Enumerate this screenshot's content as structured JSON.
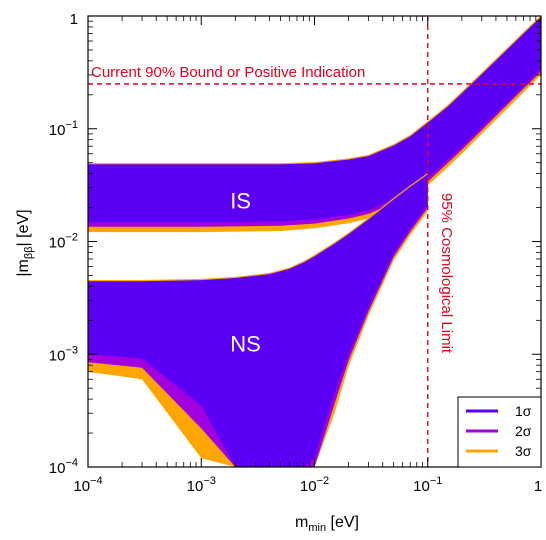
{
  "chart_data": {
    "type": "area",
    "title": "",
    "x_scale": "log",
    "y_scale": "log",
    "xlim": [
      0.0001,
      1
    ],
    "ylim": [
      0.0001,
      1
    ],
    "grid": false,
    "xlabel": {
      "main": "m",
      "sub": "min",
      "unit": "[eV]"
    },
    "ylabel": {
      "main": "|m",
      "sub": "ββ",
      "tail": "|",
      "unit": "[eV]"
    },
    "x_ticks": [
      {
        "value": 0.0001,
        "base": "10",
        "exp": "−4"
      },
      {
        "value": 0.001,
        "base": "10",
        "exp": "−3"
      },
      {
        "value": 0.01,
        "base": "10",
        "exp": "−2"
      },
      {
        "value": 0.1,
        "base": "10",
        "exp": "−1"
      },
      {
        "value": 1,
        "base": "1",
        "exp": ""
      }
    ],
    "y_ticks": [
      {
        "value": 0.0001,
        "base": "10",
        "exp": "−4"
      },
      {
        "value": 0.001,
        "base": "10",
        "exp": "−3"
      },
      {
        "value": 0.01,
        "base": "10",
        "exp": "−2"
      },
      {
        "value": 0.1,
        "base": "10",
        "exp": "−1"
      },
      {
        "value": 1,
        "base": "1",
        "exp": ""
      }
    ],
    "legend": {
      "position": "bottom-right",
      "entries": [
        {
          "label": "1σ",
          "color": "#5b00f5"
        },
        {
          "label": "2σ",
          "color": "#a100e0"
        },
        {
          "label": "3σ",
          "color": "#ffa500"
        }
      ]
    },
    "colors": {
      "band_1s": "#5b00f5",
      "band_2s": "#a100e0",
      "band_3s": "#ffa500",
      "limits": "#e8001c"
    },
    "bound_line": {
      "y": 0.25,
      "label": "Current 90% Bound or Positive Indication"
    },
    "cosmo_line": {
      "x": 0.1,
      "label": "95% Cosmological Limit"
    },
    "region_labels": [
      {
        "text": "IS",
        "x": 0.0015,
        "y": 0.024
      },
      {
        "text": "NS",
        "x": 0.0015,
        "y": 0.0013
      }
    ],
    "series": [
      {
        "name": "IS",
        "x": [
          0.0001,
          0.001,
          0.005,
          0.01,
          0.02,
          0.03,
          0.05,
          0.07,
          0.1,
          0.15,
          0.2,
          0.3,
          0.5,
          0.7,
          1
        ],
        "upper_1s": [
          0.049,
          0.049,
          0.049,
          0.05,
          0.054,
          0.058,
          0.072,
          0.087,
          0.115,
          0.16,
          0.21,
          0.31,
          0.51,
          0.71,
          1.0
        ],
        "lower_1s": [
          0.0148,
          0.0148,
          0.0151,
          0.0158,
          0.0172,
          0.019,
          0.0235,
          0.0285,
          0.037,
          0.053,
          0.069,
          0.103,
          0.17,
          0.238,
          0.34
        ],
        "lower_2s": [
          0.0135,
          0.0135,
          0.0138,
          0.0144,
          0.016,
          0.0176,
          0.0218,
          0.0265,
          0.034,
          0.0495,
          0.065,
          0.097,
          0.162,
          0.226,
          0.32
        ],
        "lower_3s": [
          0.0121,
          0.0121,
          0.0124,
          0.0131,
          0.0145,
          0.016,
          0.0198,
          0.024,
          0.0315,
          0.0455,
          0.06,
          0.09,
          0.15,
          0.21,
          0.3
        ]
      },
      {
        "name": "NS",
        "x": [
          0.0001,
          0.0003,
          0.001,
          0.002,
          0.004,
          0.006,
          0.008,
          0.01,
          0.015,
          0.02,
          0.03,
          0.05,
          0.07,
          0.1
        ],
        "upper_1s": [
          0.0045,
          0.0045,
          0.0046,
          0.0048,
          0.0052,
          0.0058,
          0.0066,
          0.0075,
          0.0097,
          0.0118,
          0.016,
          0.024,
          0.031,
          0.04
        ],
        "lower_1s": [
          0.001,
          0.00092,
          0.00035,
          0.0001,
          0.0001,
          0.0001,
          0.0001,
          0.00012,
          0.00045,
          0.001,
          0.0026,
          0.0078,
          0.013,
          0.021
        ],
        "lower_2s": [
          0.00085,
          0.00076,
          0.00022,
          0.0001,
          0.0001,
          0.0001,
          0.0001,
          0.0001,
          0.00036,
          0.00088,
          0.0024,
          0.0073,
          0.0122,
          0.0198
        ],
        "lower_3s": [
          0.0007,
          0.0006,
          0.00012,
          0.0001,
          0.0001,
          0.0001,
          0.0001,
          0.0001,
          0.0003,
          0.00078,
          0.0022,
          0.0068,
          0.0114,
          0.0185
        ]
      }
    ]
  }
}
